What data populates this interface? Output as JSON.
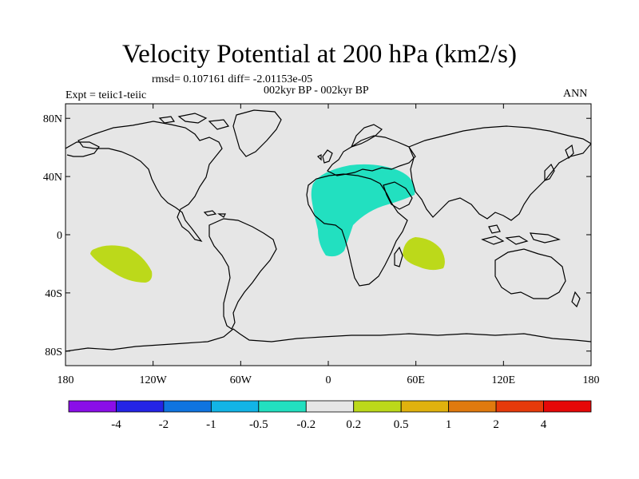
{
  "title": "Velocity Potential at 200 hPa (km2/s)",
  "stats_text": "rmsd= 0.107161  diff= -2.01153e-05",
  "period_text": "002kyr BP - 002kyr BP",
  "expt_text": "Expt = teiic1-teiic",
  "season_text": "ANN",
  "lat_labels": [
    "80N",
    "40N",
    "0",
    "40S",
    "80S"
  ],
  "lon_labels": [
    "180",
    "120W",
    "60W",
    "0",
    "60E",
    "120E",
    "180"
  ],
  "colors": {
    "ocean": "#e6e6e6",
    "teal": "#22e0c0",
    "yellowgreen": "#bcd91a",
    "coast": "#000000"
  },
  "colorbar": {
    "colors": [
      "#8a0ee8",
      "#2424e6",
      "#0f74e0",
      "#12b4e6",
      "#22e0c0",
      "#e6e6e6",
      "#bcd91a",
      "#e0b20e",
      "#e07a0e",
      "#e63a0a",
      "#e60808"
    ],
    "labels": [
      "-4",
      "-2",
      "-1",
      "-0.5",
      "-0.2",
      "0.2",
      "0.5",
      "1",
      "2",
      "4"
    ]
  },
  "map_data": {
    "projection": "cylindrical equidistant",
    "lon_range": [
      -180,
      180
    ],
    "lat_range": [
      -90,
      90
    ],
    "anomalies": [
      {
        "name": "Africa / Middle East negative anomaly",
        "category": "-0.5 to -0.2"
      },
      {
        "name": "South Pacific positive anomaly",
        "category": "0.2 to 0.5"
      },
      {
        "name": "Indian Ocean positive anomaly",
        "category": "0.2 to 0.5"
      }
    ]
  }
}
